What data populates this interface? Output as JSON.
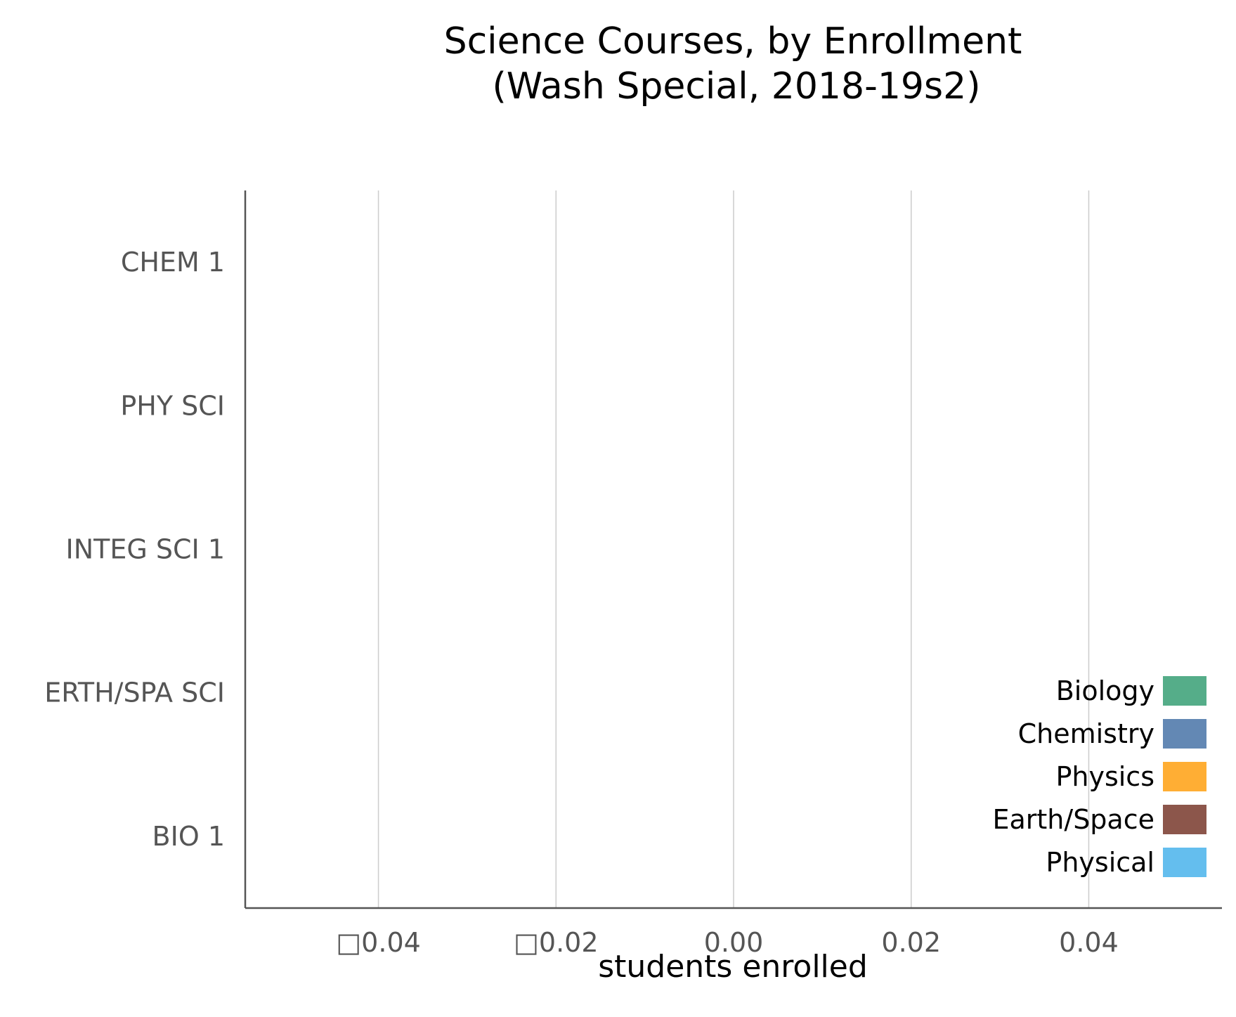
{
  "chart_data": {
    "type": "bar",
    "orientation": "horizontal",
    "title": "Science Courses, by Enrollment",
    "subtitle": "(Wash Special, 2018-19s2)",
    "xlabel": "students enrolled",
    "ylabel": "",
    "categories": [
      "CHEM 1",
      "PHY SCI",
      "INTEG SCI 1",
      "ERTH/SPA SCI",
      "BIO 1"
    ],
    "values": [
      0,
      0,
      0,
      0,
      0
    ],
    "xlim": [
      -0.055,
      0.055
    ],
    "xticks": [
      -0.04,
      -0.02,
      0.0,
      0.02,
      0.04
    ],
    "xtick_labels": [
      "□0.04",
      "□0.02",
      "0.00",
      "0.02",
      "0.04"
    ],
    "grid": "vertical",
    "legend_placement": "bottom-right",
    "legend": [
      {
        "label": "Biology",
        "color": "#55AD89"
      },
      {
        "label": "Chemistry",
        "color": "#6388B4"
      },
      {
        "label": "Physics",
        "color": "#FFAE34"
      },
      {
        "label": "Earth/Space",
        "color": "#8C564B"
      },
      {
        "label": "Physical",
        "color": "#64BEEE"
      }
    ]
  }
}
